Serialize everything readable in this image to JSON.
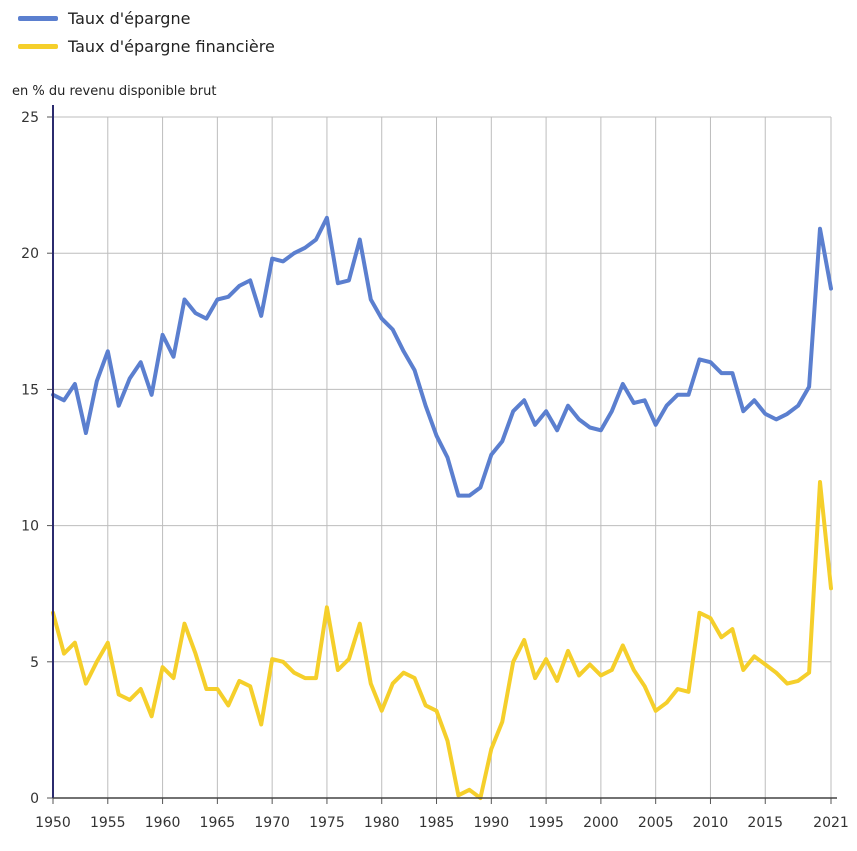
{
  "chart_data": {
    "type": "line",
    "ylabel": "en % du revenu disponible brut",
    "ylim": [
      0,
      25
    ],
    "xlim": [
      1950,
      2021
    ],
    "yticks": [
      0,
      5,
      10,
      15,
      20,
      25
    ],
    "xticks": [
      1950,
      1955,
      1960,
      1965,
      1970,
      1975,
      1980,
      1985,
      1990,
      1995,
      2000,
      2005,
      2010,
      2015,
      2021
    ],
    "grid": true,
    "legend_position": "top-left",
    "x": [
      1950,
      1951,
      1952,
      1953,
      1954,
      1955,
      1956,
      1957,
      1958,
      1959,
      1960,
      1961,
      1962,
      1963,
      1964,
      1965,
      1966,
      1967,
      1968,
      1969,
      1970,
      1971,
      1972,
      1973,
      1974,
      1975,
      1976,
      1977,
      1978,
      1979,
      1980,
      1981,
      1982,
      1983,
      1984,
      1985,
      1986,
      1987,
      1988,
      1989,
      1990,
      1991,
      1992,
      1993,
      1994,
      1995,
      1996,
      1997,
      1998,
      1999,
      2000,
      2001,
      2002,
      2003,
      2004,
      2005,
      2006,
      2007,
      2008,
      2009,
      2010,
      2011,
      2012,
      2013,
      2014,
      2015,
      2016,
      2017,
      2018,
      2019,
      2020,
      2021
    ],
    "series": [
      {
        "name": "Taux d'épargne",
        "color": "#5b7fcf",
        "values": [
          14.8,
          14.6,
          15.2,
          13.4,
          15.3,
          16.4,
          14.4,
          15.4,
          16.0,
          14.8,
          17.0,
          16.2,
          18.3,
          17.8,
          17.6,
          18.3,
          18.4,
          18.8,
          19.0,
          17.7,
          19.8,
          19.7,
          20.0,
          20.2,
          20.5,
          21.3,
          18.9,
          19.0,
          20.5,
          18.3,
          17.6,
          17.2,
          16.4,
          15.7,
          14.4,
          13.3,
          12.5,
          11.1,
          11.1,
          11.4,
          12.6,
          13.1,
          14.2,
          14.6,
          13.7,
          14.2,
          13.5,
          14.4,
          13.9,
          13.6,
          13.5,
          14.2,
          15.2,
          14.5,
          14.6,
          13.7,
          14.4,
          14.8,
          14.8,
          16.1,
          16.0,
          15.6,
          15.6,
          14.2,
          14.6,
          14.1,
          13.9,
          14.1,
          14.4,
          15.1,
          20.9,
          18.7
        ]
      },
      {
        "name": "Taux d'épargne financière",
        "color": "#f5cf2b",
        "values": [
          6.8,
          5.3,
          5.7,
          4.2,
          5.0,
          5.7,
          3.8,
          3.6,
          4.0,
          3.0,
          4.8,
          4.4,
          6.4,
          5.3,
          4.0,
          4.0,
          3.4,
          4.3,
          4.1,
          2.7,
          5.1,
          5.0,
          4.6,
          4.4,
          4.4,
          7.0,
          4.7,
          5.1,
          6.4,
          4.2,
          3.2,
          4.2,
          4.6,
          4.4,
          3.4,
          3.2,
          2.1,
          0.1,
          0.3,
          0.0,
          1.8,
          2.8,
          5.0,
          5.8,
          4.4,
          5.1,
          4.3,
          5.4,
          4.5,
          4.9,
          4.5,
          4.7,
          5.6,
          4.7,
          4.1,
          3.2,
          3.5,
          4.0,
          3.9,
          6.8,
          6.6,
          5.9,
          6.2,
          4.7,
          5.2,
          4.9,
          4.6,
          4.2,
          4.3,
          4.6,
          11.6,
          7.7
        ]
      }
    ]
  }
}
